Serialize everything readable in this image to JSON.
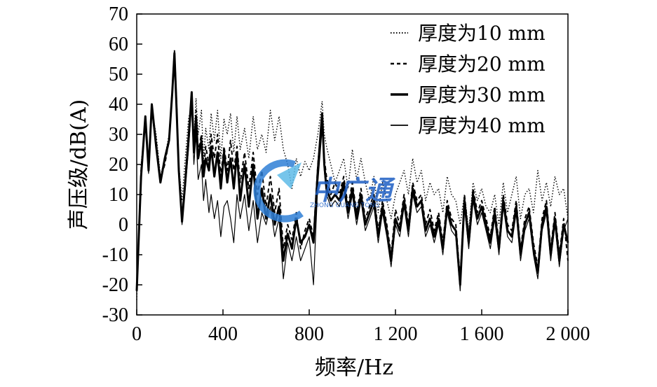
{
  "chart_data": {
    "type": "line",
    "xlabel": "频率/Hz",
    "ylabel": "声压级/dB(A)",
    "xlim": [
      0,
      2000
    ],
    "ylim": [
      -30,
      70
    ],
    "xticks": [
      0,
      400,
      800,
      1200,
      1600,
      2000
    ],
    "xtick_labels": [
      "0",
      "400",
      "800",
      "1 200",
      "1 600",
      "2 000"
    ],
    "yticks": [
      -30,
      -20,
      -10,
      0,
      10,
      20,
      30,
      40,
      50,
      60,
      70
    ],
    "ytick_labels": [
      "-30",
      "-20",
      "-10",
      "0",
      "10",
      "20",
      "30",
      "40",
      "50",
      "60",
      "70"
    ],
    "grid": false,
    "legend_position": "top-right",
    "series": [
      {
        "name": "厚度为10 mm",
        "style": "dotted",
        "x": [
          0,
          20,
          40,
          55,
          70,
          90,
          110,
          130,
          150,
          165,
          175,
          185,
          195,
          210,
          225,
          240,
          255,
          265,
          275,
          285,
          300,
          310,
          320,
          335,
          345,
          360,
          375,
          390,
          405,
          420,
          435,
          450,
          465,
          480,
          500,
          520,
          540,
          560,
          580,
          600,
          620,
          640,
          660,
          680,
          700,
          720,
          740,
          760,
          780,
          800,
          820,
          840,
          860,
          870,
          880,
          900,
          920,
          940,
          960,
          980,
          1000,
          1020,
          1040,
          1060,
          1080,
          1100,
          1120,
          1140,
          1160,
          1180,
          1200,
          1220,
          1240,
          1260,
          1280,
          1300,
          1320,
          1340,
          1360,
          1380,
          1400,
          1420,
          1440,
          1460,
          1480,
          1500,
          1520,
          1540,
          1560,
          1580,
          1600,
          1620,
          1640,
          1660,
          1680,
          1700,
          1720,
          1740,
          1760,
          1780,
          1800,
          1820,
          1840,
          1860,
          1880,
          1900,
          1920,
          1940,
          1960,
          1980,
          2000
        ],
        "y": [
          -25,
          20,
          33,
          22,
          38,
          30,
          16,
          22,
          30,
          45,
          58,
          42,
          20,
          8,
          22,
          35,
          40,
          28,
          42,
          30,
          38,
          22,
          32,
          25,
          37,
          28,
          38,
          22,
          35,
          30,
          37,
          24,
          36,
          25,
          32,
          22,
          36,
          25,
          30,
          24,
          38,
          28,
          36,
          25,
          20,
          12,
          22,
          16,
          21,
          18,
          22,
          30,
          41,
          30,
          26,
          20,
          14,
          18,
          22,
          12,
          25,
          15,
          22,
          14,
          8,
          16,
          4,
          14,
          8,
          2,
          10,
          14,
          18,
          10,
          22,
          14,
          18,
          8,
          14,
          10,
          12,
          4,
          16,
          10,
          8,
          0,
          10,
          -2,
          14,
          8,
          12,
          6,
          4,
          10,
          0,
          14,
          4,
          10,
          16,
          2,
          10,
          12,
          4,
          18,
          8,
          14,
          6,
          16,
          10,
          12,
          2
        ]
      },
      {
        "name": "厚度为20 mm",
        "style": "dashed",
        "x": [
          0,
          20,
          40,
          55,
          70,
          90,
          110,
          130,
          150,
          165,
          175,
          185,
          195,
          210,
          225,
          240,
          255,
          265,
          275,
          285,
          300,
          310,
          320,
          335,
          345,
          360,
          375,
          390,
          405,
          420,
          435,
          450,
          465,
          480,
          500,
          520,
          540,
          560,
          580,
          600,
          620,
          640,
          660,
          680,
          700,
          720,
          740,
          760,
          780,
          800,
          820,
          840,
          860,
          870,
          880,
          900,
          920,
          940,
          960,
          980,
          1000,
          1020,
          1040,
          1060,
          1080,
          1100,
          1120,
          1140,
          1160,
          1180,
          1200,
          1220,
          1240,
          1260,
          1280,
          1300,
          1320,
          1340,
          1360,
          1380,
          1400,
          1420,
          1440,
          1460,
          1480,
          1500,
          1520,
          1540,
          1560,
          1580,
          1600,
          1620,
          1640,
          1660,
          1680,
          1700,
          1720,
          1740,
          1760,
          1780,
          1800,
          1820,
          1840,
          1860,
          1880,
          1900,
          1920,
          1940,
          1960,
          1980,
          2000
        ],
        "y": [
          -22,
          18,
          35,
          18,
          39,
          28,
          15,
          20,
          28,
          45,
          58,
          40,
          18,
          2,
          16,
          30,
          43,
          26,
          38,
          24,
          30,
          18,
          26,
          20,
          30,
          22,
          30,
          16,
          26,
          18,
          28,
          18,
          26,
          14,
          24,
          12,
          24,
          10,
          18,
          6,
          16,
          4,
          12,
          -8,
          0,
          -5,
          4,
          -8,
          -2,
          2,
          -4,
          20,
          36,
          22,
          16,
          10,
          14,
          10,
          16,
          6,
          14,
          4,
          12,
          2,
          6,
          10,
          -2,
          8,
          0,
          -10,
          5,
          0,
          10,
          0,
          14,
          8,
          10,
          0,
          5,
          -2,
          4,
          -6,
          8,
          2,
          0,
          -18,
          10,
          -4,
          12,
          4,
          8,
          2,
          -4,
          6,
          -6,
          10,
          0,
          -2,
          8,
          -8,
          2,
          6,
          -6,
          -14,
          2,
          8,
          -8,
          4,
          -10,
          2,
          -12
        ]
      },
      {
        "name": "厚度为30 mm",
        "style": "thick",
        "x": [
          0,
          20,
          40,
          55,
          70,
          90,
          110,
          130,
          150,
          165,
          175,
          185,
          195,
          210,
          225,
          240,
          255,
          265,
          275,
          285,
          300,
          310,
          320,
          335,
          345,
          360,
          375,
          390,
          405,
          420,
          435,
          450,
          465,
          480,
          500,
          520,
          540,
          560,
          580,
          600,
          620,
          640,
          660,
          680,
          700,
          720,
          740,
          760,
          780,
          800,
          820,
          840,
          860,
          870,
          880,
          900,
          920,
          940,
          960,
          980,
          1000,
          1020,
          1040,
          1060,
          1080,
          1100,
          1120,
          1140,
          1160,
          1180,
          1200,
          1220,
          1240,
          1260,
          1280,
          1300,
          1320,
          1340,
          1360,
          1380,
          1400,
          1420,
          1440,
          1460,
          1480,
          1500,
          1520,
          1540,
          1560,
          1580,
          1600,
          1620,
          1640,
          1660,
          1680,
          1700,
          1720,
          1740,
          1760,
          1780,
          1800,
          1820,
          1840,
          1860,
          1880,
          1900,
          1920,
          1940,
          1960,
          1980,
          2000
        ],
        "y": [
          -22,
          16,
          36,
          18,
          40,
          26,
          14,
          22,
          28,
          44,
          57,
          38,
          18,
          1,
          14,
          28,
          44,
          24,
          36,
          22,
          28,
          16,
          22,
          18,
          26,
          16,
          24,
          12,
          24,
          14,
          22,
          12,
          24,
          8,
          20,
          6,
          20,
          2,
          12,
          2,
          10,
          0,
          6,
          -12,
          -3,
          -8,
          2,
          -6,
          -4,
          0,
          -6,
          18,
          37,
          20,
          12,
          8,
          10,
          8,
          14,
          4,
          12,
          2,
          10,
          0,
          4,
          8,
          -4,
          6,
          -2,
          -12,
          2,
          -2,
          8,
          -2,
          12,
          6,
          8,
          -2,
          2,
          -4,
          2,
          -8,
          6,
          0,
          -2,
          -20,
          8,
          -6,
          10,
          2,
          6,
          0,
          -6,
          4,
          -8,
          8,
          -2,
          -4,
          6,
          -10,
          0,
          4,
          -8,
          -16,
          0,
          6,
          -10,
          2,
          -12,
          0,
          -6
        ]
      },
      {
        "name": "厚度为40 mm",
        "style": "thin",
        "x": [
          0,
          20,
          40,
          55,
          70,
          90,
          110,
          130,
          150,
          165,
          175,
          185,
          195,
          210,
          225,
          240,
          255,
          265,
          275,
          285,
          300,
          310,
          320,
          335,
          345,
          360,
          375,
          390,
          405,
          420,
          435,
          450,
          465,
          480,
          500,
          520,
          540,
          560,
          580,
          600,
          620,
          640,
          660,
          680,
          700,
          720,
          740,
          760,
          780,
          800,
          820,
          840,
          860,
          870,
          880,
          900,
          920,
          940,
          960,
          980,
          1000,
          1020,
          1040,
          1060,
          1080,
          1100,
          1120,
          1140,
          1160,
          1180,
          1200,
          1220,
          1240,
          1260,
          1280,
          1300,
          1320,
          1340,
          1360,
          1380,
          1400,
          1420,
          1440,
          1460,
          1480,
          1500,
          1520,
          1540,
          1560,
          1580,
          1600,
          1620,
          1640,
          1660,
          1680,
          1700,
          1720,
          1740,
          1760,
          1780,
          1800,
          1820,
          1840,
          1860,
          1880,
          1900,
          1920,
          1940,
          1960,
          1980,
          2000
        ],
        "y": [
          -20,
          15,
          34,
          17,
          38,
          25,
          14,
          21,
          27,
          43,
          55,
          36,
          16,
          0,
          12,
          25,
          40,
          20,
          30,
          15,
          20,
          8,
          15,
          4,
          10,
          2,
          8,
          -4,
          6,
          8,
          2,
          -6,
          10,
          2,
          10,
          -2,
          8,
          -6,
          4,
          0,
          6,
          -4,
          2,
          -18,
          -6,
          -12,
          -4,
          -12,
          -8,
          -4,
          -20,
          14,
          32,
          18,
          10,
          6,
          8,
          6,
          12,
          2,
          10,
          0,
          8,
          -2,
          2,
          6,
          -6,
          4,
          -4,
          -14,
          0,
          -4,
          6,
          -4,
          10,
          4,
          6,
          -4,
          0,
          -6,
          0,
          -10,
          4,
          -2,
          -4,
          -22,
          6,
          -8,
          8,
          0,
          4,
          -2,
          -8,
          2,
          -10,
          6,
          -4,
          -6,
          4,
          -12,
          -2,
          2,
          -10,
          -18,
          -2,
          4,
          -12,
          0,
          -14,
          -2,
          2
        ]
      }
    ]
  },
  "watermark": {
    "text": "中广通",
    "subtext": "ZHONG GUANG TONG"
  }
}
